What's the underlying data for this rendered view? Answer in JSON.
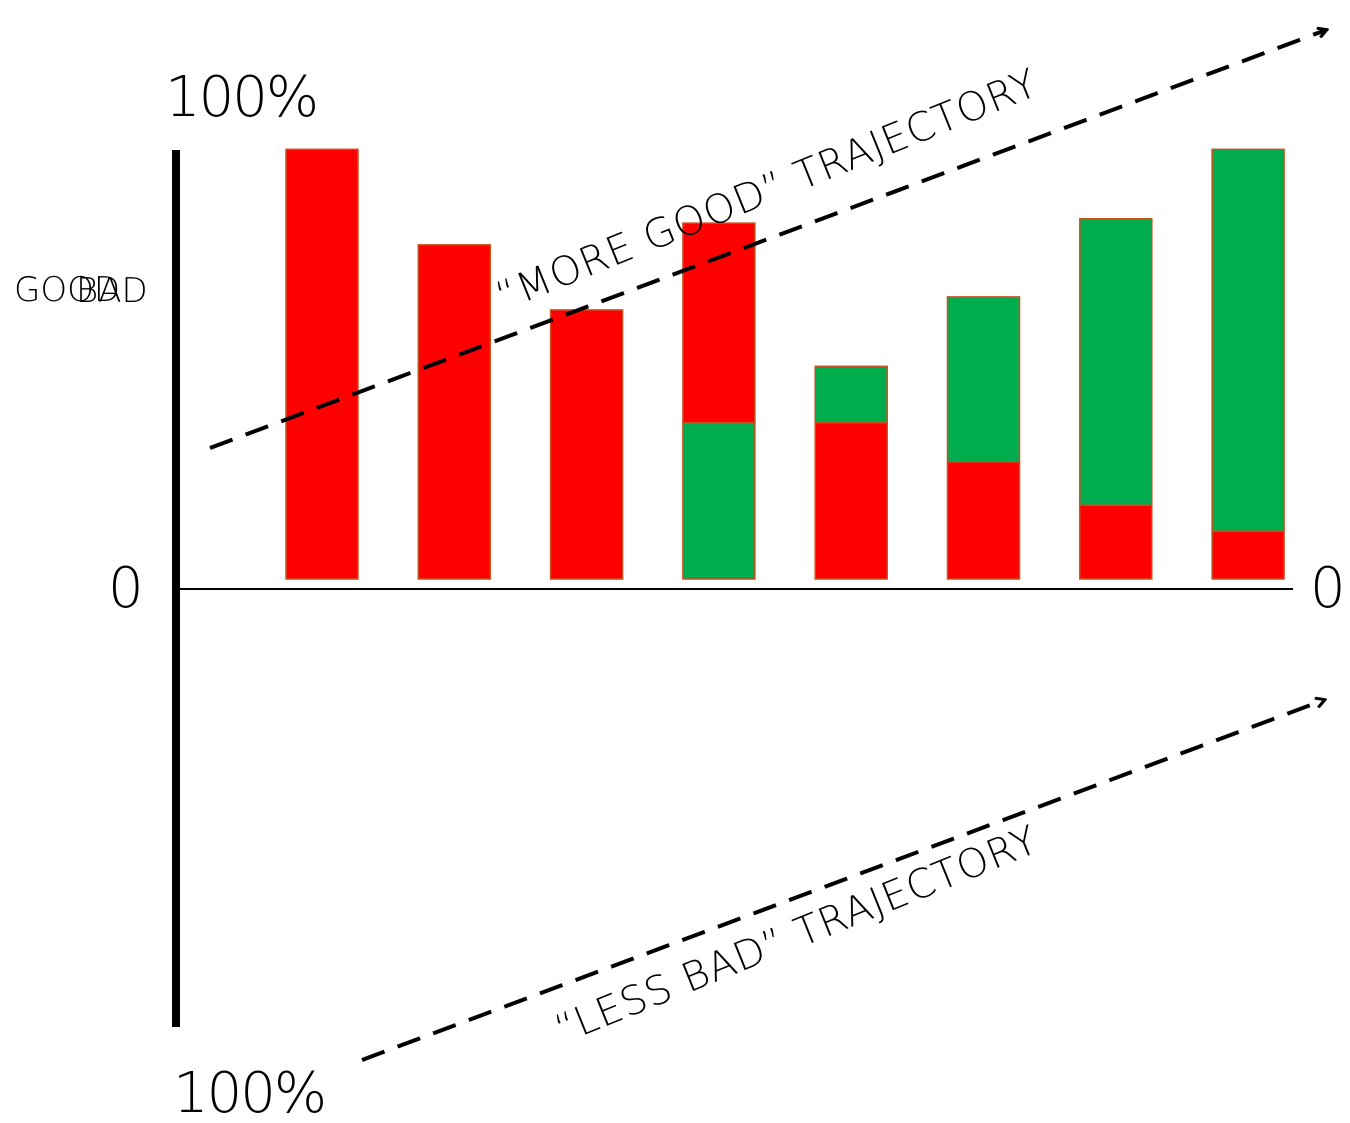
{
  "axis": {
    "top_label": "100%",
    "bottom_label": "100%",
    "zero_left": "0",
    "zero_right": "0"
  },
  "side_labels": {
    "good": "GOOD",
    "bad": "BAD"
  },
  "trajectories": {
    "more_good": "“MORE GOOD” TRAJECTORY",
    "less_bad": "“LESS BAD” TRAJECTORY"
  },
  "colors": {
    "bad": "#ff0000",
    "good": "#00ac4c",
    "border": "#c8501e",
    "ink": "#000000"
  },
  "chart_data": {
    "type": "bar",
    "stacked": true,
    "ylim": [
      0,
      100
    ],
    "series": [
      {
        "name": "BAD",
        "color": "#ff0000",
        "values": [
          99,
          77,
          62,
          46,
          36,
          27,
          17,
          11
        ]
      },
      {
        "name": "GOOD",
        "color": "#00ac4c",
        "values": [
          0,
          0,
          0,
          36,
          13,
          38,
          66,
          88
        ]
      }
    ],
    "stack_order": [
      "GOOD",
      "BAD",
      "GOOD",
      "BAD",
      "GOOD",
      "BAD",
      "GOOD",
      "BAD"
    ],
    "bottom_segment": [
      "BAD",
      "BAD",
      "BAD",
      "GOOD",
      "BAD",
      "BAD",
      "BAD",
      "BAD"
    ]
  }
}
